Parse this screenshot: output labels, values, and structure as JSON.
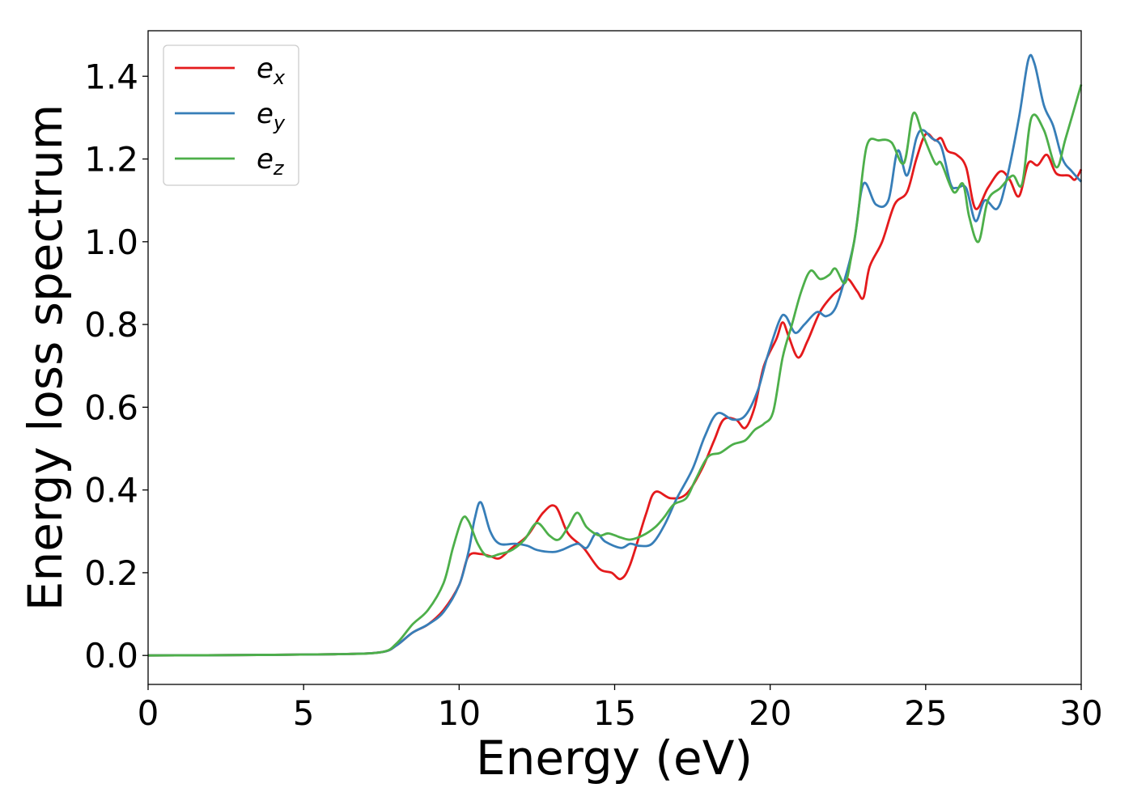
{
  "chart_data": {
    "type": "line",
    "title": "",
    "xlabel": "Energy (eV)",
    "ylabel": "Energy loss spectrum",
    "xlim": [
      0,
      30
    ],
    "ylim": [
      -0.07,
      1.51
    ],
    "xticks": [
      0,
      5,
      10,
      15,
      20,
      25,
      30
    ],
    "xtick_labels": [
      "0",
      "5",
      "10",
      "15",
      "20",
      "25",
      "30"
    ],
    "yticks": [
      0.0,
      0.2,
      0.4,
      0.6,
      0.8,
      1.0,
      1.2,
      1.4
    ],
    "ytick_labels": [
      "0.0",
      "0.2",
      "0.4",
      "0.6",
      "0.8",
      "1.0",
      "1.2",
      "1.4"
    ],
    "grid": false,
    "legend_position": "top-left",
    "series": [
      {
        "name": "e_x",
        "label_base": "e",
        "label_sub": "x",
        "color": "#e41a1c",
        "points": [
          [
            0,
            0
          ],
          [
            3,
            0.001
          ],
          [
            6,
            0.003
          ],
          [
            7.5,
            0.008
          ],
          [
            8,
            0.025
          ],
          [
            8.5,
            0.055
          ],
          [
            9,
            0.075
          ],
          [
            9.5,
            0.11
          ],
          [
            10,
            0.17
          ],
          [
            10.3,
            0.24
          ],
          [
            10.7,
            0.245
          ],
          [
            11,
            0.24
          ],
          [
            11.3,
            0.235
          ],
          [
            11.7,
            0.26
          ],
          [
            12.2,
            0.29
          ],
          [
            12.7,
            0.345
          ],
          [
            13.1,
            0.36
          ],
          [
            13.5,
            0.295
          ],
          [
            14,
            0.26
          ],
          [
            14.5,
            0.21
          ],
          [
            14.9,
            0.2
          ],
          [
            15.2,
            0.185
          ],
          [
            15.5,
            0.22
          ],
          [
            16,
            0.34
          ],
          [
            16.3,
            0.395
          ],
          [
            16.8,
            0.38
          ],
          [
            17.3,
            0.39
          ],
          [
            17.8,
            0.45
          ],
          [
            18.2,
            0.52
          ],
          [
            18.5,
            0.57
          ],
          [
            18.9,
            0.57
          ],
          [
            19.2,
            0.55
          ],
          [
            19.5,
            0.6
          ],
          [
            19.8,
            0.7
          ],
          [
            20.2,
            0.765
          ],
          [
            20.4,
            0.805
          ],
          [
            20.6,
            0.77
          ],
          [
            20.9,
            0.72
          ],
          [
            21.2,
            0.76
          ],
          [
            21.6,
            0.83
          ],
          [
            22,
            0.87
          ],
          [
            22.3,
            0.89
          ],
          [
            22.5,
            0.91
          ],
          [
            22.8,
            0.88
          ],
          [
            23,
            0.865
          ],
          [
            23.2,
            0.94
          ],
          [
            23.6,
            1.0
          ],
          [
            24,
            1.09
          ],
          [
            24.4,
            1.12
          ],
          [
            24.7,
            1.2
          ],
          [
            25,
            1.26
          ],
          [
            25.3,
            1.245
          ],
          [
            25.5,
            1.25
          ],
          [
            25.7,
            1.22
          ],
          [
            26,
            1.21
          ],
          [
            26.3,
            1.18
          ],
          [
            26.6,
            1.08
          ],
          [
            27,
            1.13
          ],
          [
            27.4,
            1.17
          ],
          [
            27.7,
            1.15
          ],
          [
            28,
            1.11
          ],
          [
            28.3,
            1.19
          ],
          [
            28.6,
            1.185
          ],
          [
            28.9,
            1.21
          ],
          [
            29.2,
            1.165
          ],
          [
            29.6,
            1.16
          ],
          [
            29.8,
            1.15
          ],
          [
            30,
            1.175
          ]
        ]
      },
      {
        "name": "e_y",
        "label_base": "e",
        "label_sub": "y",
        "color": "#377eb8",
        "points": [
          [
            0,
            0
          ],
          [
            3,
            0.001
          ],
          [
            6,
            0.003
          ],
          [
            7.5,
            0.008
          ],
          [
            8,
            0.025
          ],
          [
            8.5,
            0.055
          ],
          [
            9,
            0.075
          ],
          [
            9.5,
            0.105
          ],
          [
            10,
            0.17
          ],
          [
            10.3,
            0.25
          ],
          [
            10.5,
            0.33
          ],
          [
            10.7,
            0.37
          ],
          [
            11,
            0.3
          ],
          [
            11.3,
            0.27
          ],
          [
            11.8,
            0.27
          ],
          [
            12.2,
            0.265
          ],
          [
            12.5,
            0.255
          ],
          [
            13,
            0.25
          ],
          [
            13.3,
            0.255
          ],
          [
            13.8,
            0.27
          ],
          [
            14.1,
            0.26
          ],
          [
            14.4,
            0.295
          ],
          [
            14.7,
            0.275
          ],
          [
            15.2,
            0.26
          ],
          [
            15.5,
            0.27
          ],
          [
            15.8,
            0.265
          ],
          [
            16.2,
            0.27
          ],
          [
            16.6,
            0.315
          ],
          [
            17,
            0.38
          ],
          [
            17.5,
            0.45
          ],
          [
            17.9,
            0.53
          ],
          [
            18.3,
            0.585
          ],
          [
            18.8,
            0.57
          ],
          [
            19.2,
            0.58
          ],
          [
            19.6,
            0.64
          ],
          [
            19.9,
            0.72
          ],
          [
            20.3,
            0.81
          ],
          [
            20.5,
            0.82
          ],
          [
            20.8,
            0.78
          ],
          [
            21.1,
            0.8
          ],
          [
            21.5,
            0.83
          ],
          [
            21.8,
            0.82
          ],
          [
            22.1,
            0.84
          ],
          [
            22.4,
            0.91
          ],
          [
            22.7,
            1.0
          ],
          [
            23,
            1.14
          ],
          [
            23.4,
            1.09
          ],
          [
            23.8,
            1.1
          ],
          [
            24.1,
            1.22
          ],
          [
            24.4,
            1.16
          ],
          [
            24.7,
            1.25
          ],
          [
            24.9,
            1.27
          ],
          [
            25.2,
            1.25
          ],
          [
            25.5,
            1.23
          ],
          [
            25.8,
            1.14
          ],
          [
            26,
            1.13
          ],
          [
            26.3,
            1.13
          ],
          [
            26.6,
            1.05
          ],
          [
            26.9,
            1.1
          ],
          [
            27.3,
            1.08
          ],
          [
            27.6,
            1.15
          ],
          [
            28,
            1.3
          ],
          [
            28.3,
            1.44
          ],
          [
            28.5,
            1.43
          ],
          [
            28.8,
            1.33
          ],
          [
            29.1,
            1.28
          ],
          [
            29.4,
            1.2
          ],
          [
            29.7,
            1.17
          ],
          [
            30,
            1.145
          ]
        ]
      },
      {
        "name": "e_z",
        "label_base": "e",
        "label_sub": "z",
        "color": "#4daf4a",
        "points": [
          [
            0,
            0
          ],
          [
            3,
            0.001
          ],
          [
            6,
            0.003
          ],
          [
            7.5,
            0.008
          ],
          [
            8,
            0.03
          ],
          [
            8.5,
            0.075
          ],
          [
            9,
            0.11
          ],
          [
            9.5,
            0.175
          ],
          [
            9.8,
            0.26
          ],
          [
            10.1,
            0.33
          ],
          [
            10.3,
            0.325
          ],
          [
            10.6,
            0.27
          ],
          [
            10.9,
            0.24
          ],
          [
            11.3,
            0.245
          ],
          [
            11.7,
            0.255
          ],
          [
            12.1,
            0.28
          ],
          [
            12.5,
            0.32
          ],
          [
            12.9,
            0.29
          ],
          [
            13.2,
            0.28
          ],
          [
            13.5,
            0.31
          ],
          [
            13.8,
            0.345
          ],
          [
            14.1,
            0.31
          ],
          [
            14.5,
            0.29
          ],
          [
            14.8,
            0.295
          ],
          [
            15.2,
            0.285
          ],
          [
            15.5,
            0.28
          ],
          [
            15.9,
            0.29
          ],
          [
            16.3,
            0.31
          ],
          [
            16.6,
            0.335
          ],
          [
            16.9,
            0.365
          ],
          [
            17.3,
            0.38
          ],
          [
            17.6,
            0.425
          ],
          [
            18,
            0.48
          ],
          [
            18.4,
            0.49
          ],
          [
            18.8,
            0.51
          ],
          [
            19.2,
            0.52
          ],
          [
            19.5,
            0.545
          ],
          [
            19.8,
            0.56
          ],
          [
            20.1,
            0.59
          ],
          [
            20.4,
            0.72
          ],
          [
            20.7,
            0.8
          ],
          [
            21,
            0.88
          ],
          [
            21.3,
            0.93
          ],
          [
            21.6,
            0.91
          ],
          [
            21.9,
            0.92
          ],
          [
            22.1,
            0.935
          ],
          [
            22.4,
            0.9
          ],
          [
            22.6,
            0.96
          ],
          [
            22.8,
            1.05
          ],
          [
            23.1,
            1.23
          ],
          [
            23.5,
            1.245
          ],
          [
            23.9,
            1.24
          ],
          [
            24.3,
            1.19
          ],
          [
            24.6,
            1.31
          ],
          [
            24.9,
            1.26
          ],
          [
            25.3,
            1.19
          ],
          [
            25.5,
            1.19
          ],
          [
            25.9,
            1.12
          ],
          [
            26.2,
            1.14
          ],
          [
            26.4,
            1.06
          ],
          [
            26.7,
            1.0
          ],
          [
            27,
            1.1
          ],
          [
            27.4,
            1.13
          ],
          [
            27.8,
            1.16
          ],
          [
            28.1,
            1.14
          ],
          [
            28.4,
            1.3
          ],
          [
            28.8,
            1.27
          ],
          [
            29.2,
            1.18
          ],
          [
            29.5,
            1.25
          ],
          [
            30,
            1.38
          ]
        ]
      }
    ]
  }
}
